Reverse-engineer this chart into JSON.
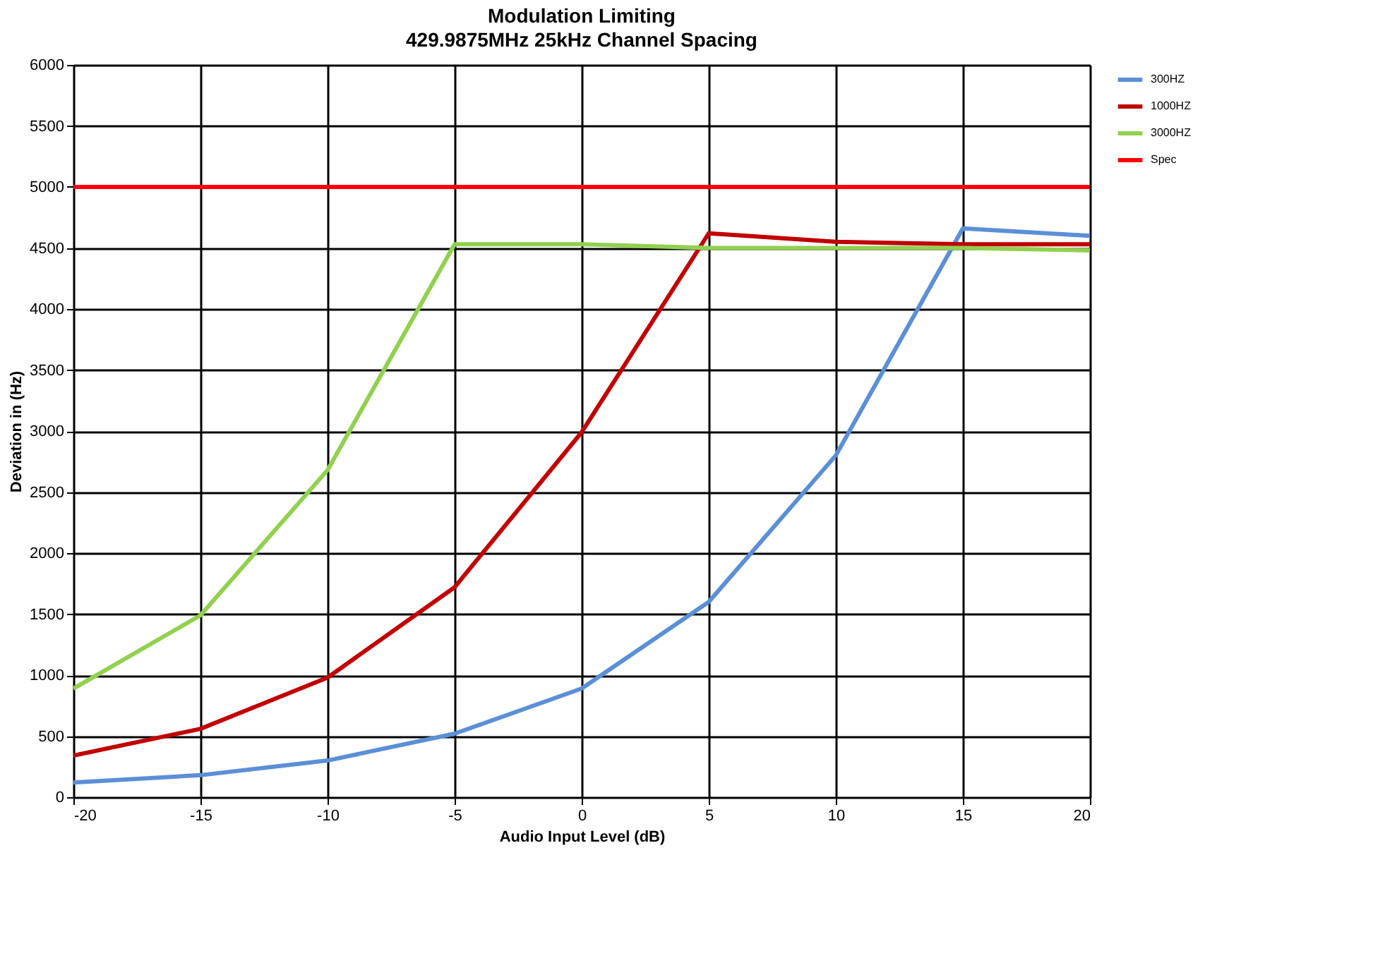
{
  "chart_data": {
    "type": "line",
    "title": "Modulation Limiting",
    "subtitle": "429.9875MHz 25kHz Channel Spacing",
    "xlabel": "Audio Input Level (dB)",
    "ylabel": "Deviation in (Hz)",
    "x": [
      -20,
      -15,
      -10,
      -5,
      0,
      5,
      10,
      15,
      20
    ],
    "series": [
      {
        "name": "300HZ",
        "color": "#5b8fd6",
        "values": [
          120,
          180,
          300,
          520,
          890,
          1600,
          2800,
          4660,
          4600
        ]
      },
      {
        "name": "1000HZ",
        "color": "#c00000",
        "values": [
          340,
          560,
          980,
          1720,
          2990,
          4620,
          4550,
          4530,
          4530
        ]
      },
      {
        "name": "3000HZ",
        "color": "#92d050",
        "values": [
          890,
          1490,
          2680,
          4530,
          4530,
          4500,
          4500,
          4500,
          4480
        ]
      },
      {
        "name": "Spec",
        "color": "#ff0000",
        "values": [
          5000,
          5000,
          5000,
          5000,
          5000,
          5000,
          5000,
          5000,
          5000
        ]
      }
    ],
    "xlim": [
      -20,
      20
    ],
    "xticks": [
      -20,
      -15,
      -10,
      -5,
      0,
      5,
      10,
      15,
      20
    ],
    "ylim": [
      0,
      6000
    ],
    "yticks": [
      0,
      500,
      1000,
      1500,
      2000,
      2500,
      3000,
      3500,
      4000,
      4500,
      5000,
      5500,
      6000
    ],
    "grid": true,
    "legend": "right",
    "marker": "none",
    "line_style": "solid"
  }
}
